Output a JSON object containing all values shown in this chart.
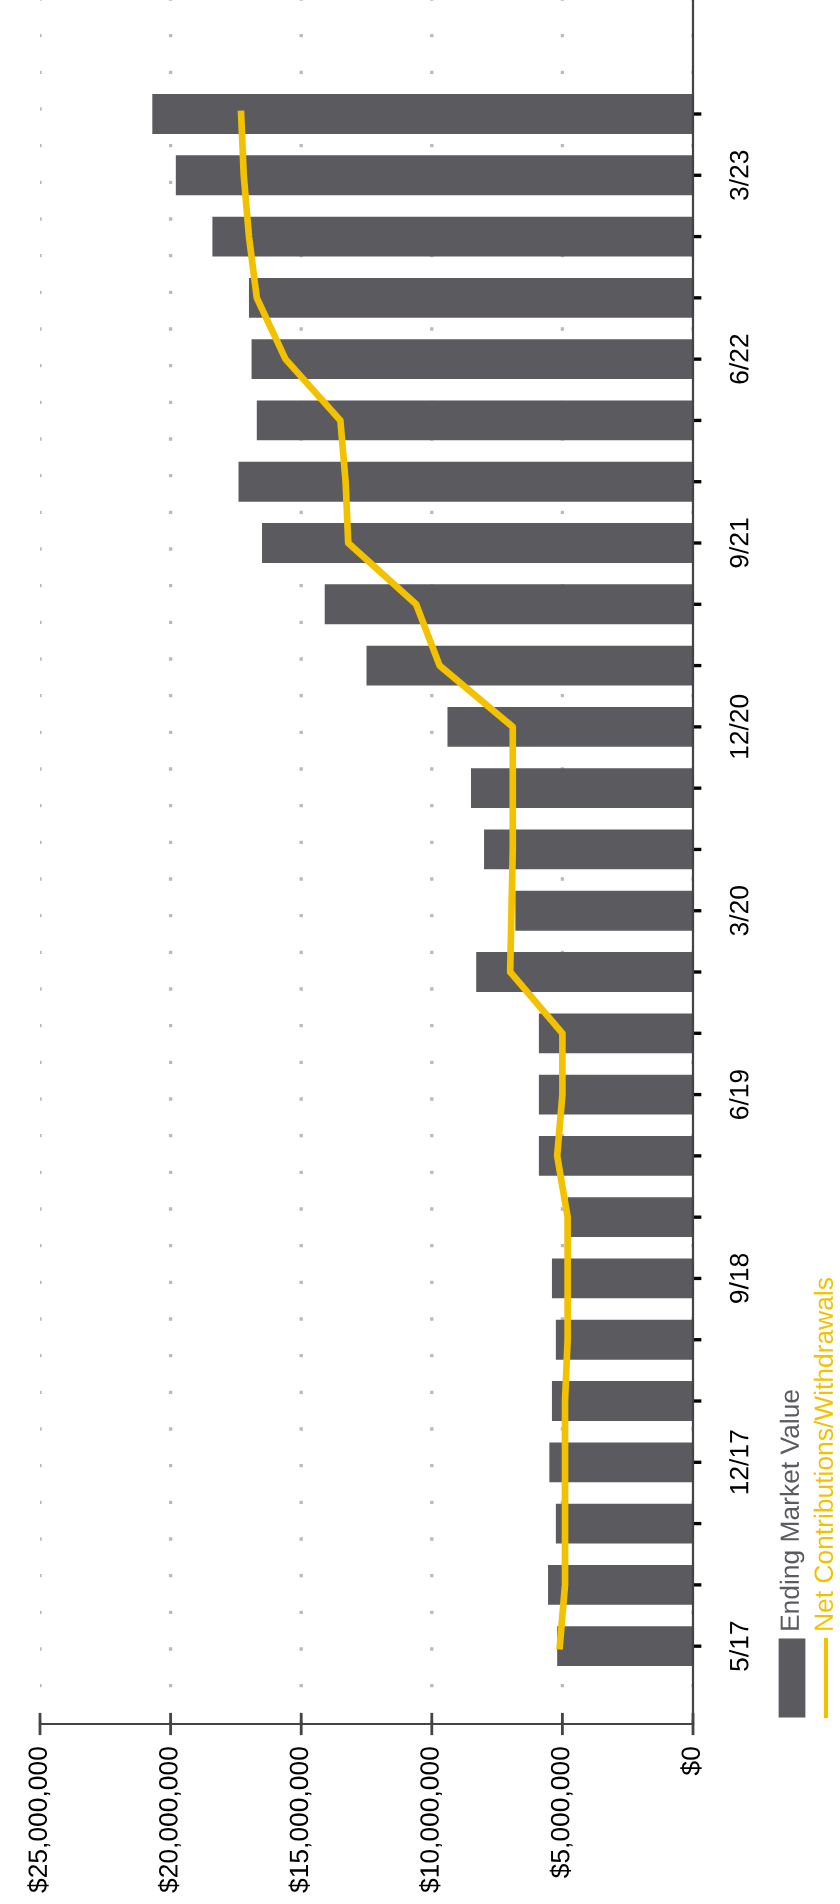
{
  "chart_data": {
    "type": "bar",
    "orientation": "horizontal",
    "categories": [
      null,
      "3/23",
      null,
      null,
      "6/22",
      null,
      null,
      "9/21",
      null,
      null,
      "12/20",
      null,
      null,
      "3/20",
      null,
      null,
      "6/19",
      null,
      null,
      "9/18",
      null,
      null,
      "12/17",
      null,
      null,
      "5/17"
    ],
    "series": [
      {
        "name": "Ending Market Value",
        "color": "#5b5a5f",
        "values": [
          20700000,
          19800000,
          18400000,
          17000000,
          16900000,
          16700000,
          17400000,
          16500000,
          14100000,
          12500000,
          9400000,
          8500000,
          8000000,
          6800000,
          8300000,
          5900000,
          5900000,
          5900000,
          4800000,
          5400000,
          5250000,
          5400000,
          5500000,
          5250000,
          5550000,
          5200000
        ]
      },
      {
        "name": "Net Contributions/Withdrawals",
        "type": "line",
        "color": "#f2c200",
        "values": [
          17300000,
          17200000,
          17000000,
          16700000,
          15600000,
          13500000,
          13300000,
          13200000,
          10600000,
          9700000,
          6900000,
          6900000,
          6900000,
          6950000,
          7000000,
          5000000,
          5000000,
          5200000,
          4800000,
          4800000,
          4800000,
          4900000,
          4900000,
          4900000,
          4900000,
          5100000
        ]
      }
    ],
    "xlim": [
      25000000,
      0
    ],
    "xticks": [
      {
        "value": 25000000,
        "label": "$25,000,000"
      },
      {
        "value": 20000000,
        "label": "$20,000,000"
      },
      {
        "value": 15000000,
        "label": "$15,000,000"
      },
      {
        "value": 10000000,
        "label": "$10,000,000"
      },
      {
        "value": 5000000,
        "label": "$5,000,000"
      },
      {
        "value": 0,
        "label": "$0"
      }
    ],
    "grid": "x",
    "legend": "bottom",
    "marker": "none"
  }
}
